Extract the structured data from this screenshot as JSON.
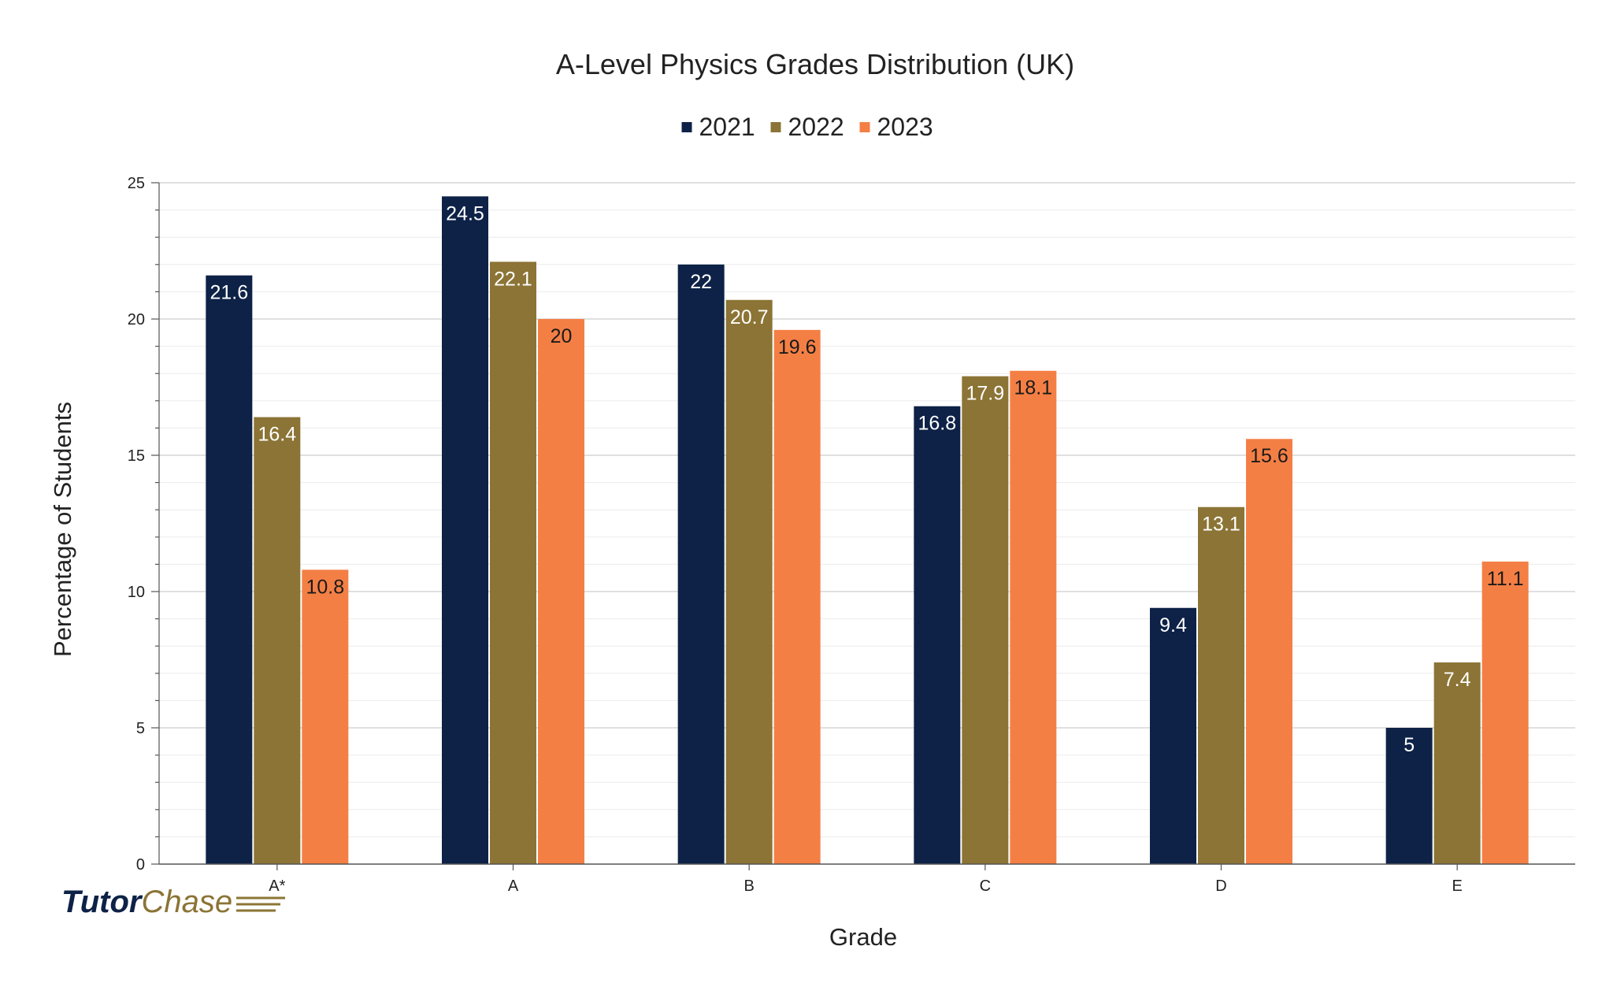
{
  "chart_data": {
    "type": "bar",
    "title": "A-Level Physics Grades Distribution (UK)",
    "xlabel": "Grade",
    "ylabel": "Percentage of Students",
    "categories": [
      "A*",
      "A",
      "B",
      "C",
      "D",
      "E"
    ],
    "series": [
      {
        "name": "2021",
        "color": "#0e2247",
        "label_color": "#ffffff",
        "values": [
          21.6,
          24.5,
          22,
          16.8,
          9.4,
          5
        ]
      },
      {
        "name": "2022",
        "color": "#8b7435",
        "label_color": "#ffffff",
        "values": [
          16.4,
          22.1,
          20.7,
          17.9,
          13.1,
          7.4
        ]
      },
      {
        "name": "2023",
        "color": "#f47f45",
        "label_color": "#1a1a1a",
        "values": [
          10.8,
          20,
          19.6,
          18.1,
          15.6,
          11.1
        ]
      }
    ],
    "ylim": [
      0,
      25
    ],
    "yticks": [
      0,
      5,
      10,
      15,
      20,
      25
    ],
    "grid": true,
    "legend_position": "top-center"
  },
  "logo": {
    "part1": "Tutor",
    "part2": "Chase"
  }
}
